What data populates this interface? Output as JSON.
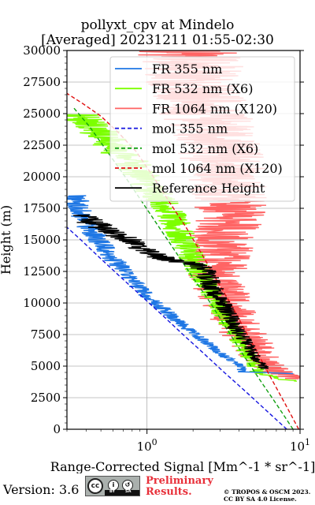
{
  "title_line1": "pollyxt_cpv at Mindelo",
  "title_line2": "[Averaged] 20231211 01:55-02:30",
  "footer": {
    "version": "Version: 3.6",
    "license_badge": "cc by sa",
    "badge_by": "BY",
    "badge_sa": "SA",
    "preliminary_line1": "Preliminary",
    "preliminary_line2": "Results.",
    "copyright_line1": "© TROPOS & OSCM 2023.",
    "copyright_line2": "CC BY SA 4.0 License."
  },
  "chart_data": {
    "type": "line",
    "title": "pollyxt_cpv at Mindelo [Averaged] 20231211 01:55-02:30",
    "xlabel": "Range-Corrected Signal [Mm^-1 * sr^-1]",
    "ylabel": "Height (m)",
    "xscale": "log",
    "xlim": [
      0.3,
      10
    ],
    "ylim": [
      0,
      30000
    ],
    "grid": true,
    "legend_position": "top-right",
    "x_tick_labels": [
      "10^0",
      "10^1"
    ],
    "x_ticks": [
      1,
      10
    ],
    "y_ticks": [
      0,
      2500,
      5000,
      7500,
      10000,
      12500,
      15000,
      17500,
      20000,
      22500,
      25000,
      27500,
      30000
    ],
    "y_tick_labels": [
      "0",
      "2500",
      "5000",
      "7500",
      "10000",
      "12500",
      "15000",
      "17500",
      "20000",
      "22500",
      "25000",
      "27500",
      "30000"
    ],
    "series": [
      {
        "name": "FR 355 nm",
        "color": "#1f77e4",
        "style": "solid",
        "noisy": true,
        "x": [
          9.5,
          4.2,
          4.1,
          3.0,
          2.4,
          1.8,
          1.45,
          1.15,
          0.92,
          0.72,
          0.55,
          0.42,
          0.33
        ],
        "y": [
          4400,
          4550,
          5000,
          6000,
          7000,
          8000,
          9000,
          10000,
          11000,
          12500,
          14000,
          16000,
          18500
        ]
      },
      {
        "name": "FR 532 nm (X6)",
        "color": "#7cff00",
        "style": "solid",
        "noisy": true,
        "x": [
          9.0,
          5.3,
          4.5,
          3.8,
          3.2,
          2.7,
          2.3,
          2.0,
          1.75,
          1.5,
          1.25,
          1.0,
          0.8,
          0.6,
          0.45,
          0.35
        ],
        "y": [
          3800,
          4500,
          6000,
          7500,
          9000,
          10500,
          12000,
          13500,
          15000,
          16500,
          18000,
          19500,
          21000,
          22500,
          24000,
          25000
        ]
      },
      {
        "name": "FR 1064 nm (X120)",
        "color": "#ff6464",
        "style": "solid",
        "noisy": true,
        "x": [
          9.0,
          6.0,
          5.0,
          4.0,
          3.3,
          2.8,
          3.0,
          3.4,
          3.6,
          3.3,
          3.0,
          2.6,
          2.4,
          2.2,
          2.0,
          1.9
        ],
        "y": [
          4000,
          5000,
          6500,
          8000,
          10000,
          12000,
          14000,
          16000,
          18000,
          20000,
          22000,
          24000,
          25500,
          27000,
          28500,
          30000
        ]
      },
      {
        "name": "mol 355 nm",
        "color": "#1515e0",
        "style": "dashed",
        "x": [
          8.2,
          6.0,
          4.4,
          3.2,
          2.35,
          1.72,
          1.27,
          0.93,
          0.68,
          0.5,
          0.37,
          0.3
        ],
        "y": [
          0,
          1500,
          3000,
          4500,
          6000,
          7500,
          9000,
          10500,
          12000,
          13500,
          15000,
          16000
        ]
      },
      {
        "name": "mol 532 nm (X6)",
        "color": "#12a012",
        "style": "dashed",
        "x": [
          9.0,
          7.0,
          5.4,
          4.2,
          3.3,
          2.6,
          2.0,
          1.55,
          1.2,
          0.93,
          0.72,
          0.55,
          0.42,
          0.33
        ],
        "y": [
          0,
          2000,
          4000,
          6000,
          8000,
          10000,
          12000,
          14000,
          16000,
          18000,
          20000,
          22000,
          24000,
          25500
        ]
      },
      {
        "name": "mol 1064 nm (X120)",
        "color": "#e01010",
        "style": "dashed",
        "x": [
          9.8,
          8.0,
          6.5,
          5.3,
          4.3,
          3.5,
          2.8,
          2.25,
          1.8,
          1.4,
          1.1,
          0.85,
          0.65,
          0.5,
          0.38,
          0.3
        ],
        "y": [
          0,
          2000,
          4000,
          6000,
          8000,
          10000,
          12000,
          14000,
          16000,
          18000,
          20000,
          22000,
          23500,
          24800,
          25800,
          26600
        ]
      },
      {
        "name": "Reference Height",
        "color": "#000000",
        "style": "solid",
        "noisy": true,
        "x": [
          5.9,
          5.2,
          4.4,
          3.8,
          3.3,
          2.9,
          2.6,
          2.4,
          2.2,
          1.3,
          0.95,
          0.75,
          0.6,
          0.5,
          0.42,
          0.35
        ],
        "y": [
          4800,
          5500,
          7000,
          8000,
          9500,
          10500,
          11500,
          12500,
          13000,
          13500,
          14200,
          15000,
          15500,
          16000,
          16500,
          17000
        ]
      }
    ]
  }
}
